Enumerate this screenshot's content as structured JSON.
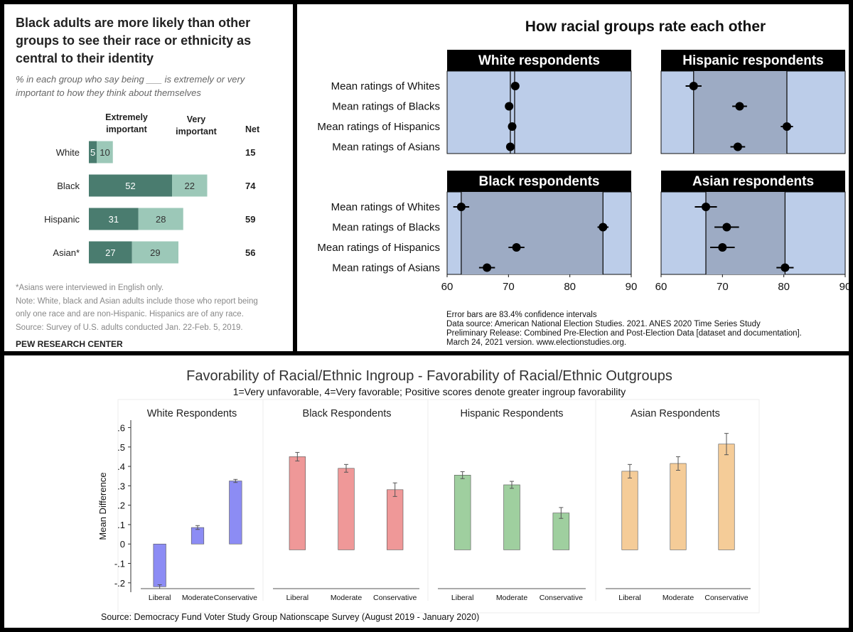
{
  "pew": {
    "title_lines": [
      "Black adults are more likely than other",
      "groups to see their race or ethnicity as",
      "central to their identity"
    ],
    "subtitle_lines": [
      "% in each group who say being ___ is extremely or very",
      "important to how they think about themselves"
    ],
    "col_headers": {
      "extremely": [
        "Extremely",
        "important"
      ],
      "very": [
        "Very",
        "important"
      ],
      "net": "Net"
    },
    "footnotes": [
      "*Asians were interviewed in English only.",
      "Note: White, black and Asian adults include those who report being",
      "only one race and are non-Hispanic. Hispanics are of any race.",
      "Source: Survey of U.S. adults conducted Jan. 22-Feb. 5, 2019."
    ],
    "brand": "PEW RESEARCH CENTER",
    "colors": {
      "extremely": "#4a7c6f",
      "very": "#9cc8b8"
    }
  },
  "anes": {
    "title": "How racial groups rate each other",
    "notes": [
      "Error bars are 83.4% confidence intervals",
      "Data source: American National Election Studies. 2021. ANES 2020 Time Series Study",
      "Preliminary Release: Combined Pre-Election and Post-Election Data [dataset and documentation].",
      "March 24, 2021 version. www.electionstudies.org."
    ],
    "colors": {
      "panel_bg": "#bccde9",
      "shade": "#9dabc4",
      "header_bg": "#000000"
    }
  },
  "dfvsg": {
    "title": "Favorability of Racial/Ethnic Ingroup - Favorability of Racial/Ethnic Outgroups",
    "subtitle": "1=Very unfavorable, 4=Very favorable; Positive scores denote greater ingroup favorability",
    "source": "Source: Democracy Fund Voter Study Group Nationscape Survey (August 2019 - January 2020)",
    "ylabel": "Mean Difference"
  },
  "chart_data": [
    {
      "type": "bar",
      "stacked": true,
      "orientation": "horizontal",
      "categories": [
        "White",
        "Black",
        "Hispanic",
        "Asian*"
      ],
      "series": [
        {
          "name": "Extremely important",
          "values": [
            5,
            52,
            31,
            27
          ]
        },
        {
          "name": "Very important",
          "values": [
            10,
            22,
            28,
            29
          ]
        }
      ],
      "net": [
        15,
        74,
        59,
        56
      ]
    },
    {
      "type": "scatter",
      "error_bars": true,
      "xlim": [
        60,
        90
      ],
      "xticks": [
        60,
        70,
        80,
        90
      ],
      "row_labels": [
        "Mean ratings of Whites",
        "Mean ratings of Blacks",
        "Mean ratings of Hispanics",
        "Mean ratings of Asians"
      ],
      "panels": [
        {
          "name": "White respondents",
          "shade": null,
          "lines": [
            70.3,
            71.0
          ],
          "points": [
            {
              "v": 71.1,
              "lo": 70.9,
              "hi": 71.3
            },
            {
              "v": 70.1,
              "lo": 69.9,
              "hi": 70.3
            },
            {
              "v": 70.6,
              "lo": 70.4,
              "hi": 70.8
            },
            {
              "v": 70.3,
              "lo": 70.1,
              "hi": 70.5
            }
          ]
        },
        {
          "name": "Hispanic respondents",
          "shade": [
            65.3,
            80.5
          ],
          "lines": [
            65.3,
            80.5
          ],
          "points": [
            {
              "v": 65.3,
              "lo": 64.0,
              "hi": 66.6
            },
            {
              "v": 72.8,
              "lo": 71.6,
              "hi": 74.0
            },
            {
              "v": 80.5,
              "lo": 79.5,
              "hi": 81.5
            },
            {
              "v": 72.5,
              "lo": 71.3,
              "hi": 73.7
            }
          ]
        },
        {
          "name": "Black respondents",
          "shade": [
            62.3,
            85.4
          ],
          "lines": [
            62.3,
            85.4
          ],
          "points": [
            {
              "v": 62.3,
              "lo": 61.0,
              "hi": 63.6
            },
            {
              "v": 85.4,
              "lo": 84.5,
              "hi": 86.3
            },
            {
              "v": 71.3,
              "lo": 70.0,
              "hi": 72.6
            },
            {
              "v": 66.5,
              "lo": 65.2,
              "hi": 67.8
            }
          ]
        },
        {
          "name": "Asian respondents",
          "shade": [
            67.3,
            80.2
          ],
          "lines": [
            67.3,
            80.2
          ],
          "points": [
            {
              "v": 67.3,
              "lo": 65.5,
              "hi": 69.1
            },
            {
              "v": 70.7,
              "lo": 68.7,
              "hi": 72.7
            },
            {
              "v": 70.0,
              "lo": 68.0,
              "hi": 72.0
            },
            {
              "v": 80.2,
              "lo": 78.8,
              "hi": 81.6
            }
          ]
        }
      ]
    },
    {
      "type": "bar",
      "error_bars": true,
      "ylim": [
        -0.23,
        0.62
      ],
      "yticks": [
        -0.2,
        -0.1,
        0,
        0.1,
        0.2,
        0.3,
        0.4,
        0.5,
        0.6
      ],
      "ytick_labels": [
        "-.2",
        "-.1",
        "0",
        ".1",
        ".2",
        ".3",
        ".4",
        ".5",
        ".6"
      ],
      "categories": [
        "Liberal",
        "Moderate",
        "Conservative"
      ],
      "series": [
        {
          "name": "White Respondents",
          "color": "#8c8cf4",
          "values": [
            -0.22,
            0.085,
            0.325
          ],
          "err": [
            0.01,
            0.01,
            0.008
          ]
        },
        {
          "name": "Black Respondents",
          "color": "#ef9898",
          "values": [
            0.45,
            0.39,
            0.28
          ],
          "err": [
            0.022,
            0.02,
            0.035
          ]
        },
        {
          "name": "Hispanic Respondents",
          "color": "#9fcf9f",
          "values": [
            0.355,
            0.305,
            0.16
          ],
          "err": [
            0.018,
            0.018,
            0.028
          ]
        },
        {
          "name": "Asian Respondents",
          "color": "#f5cc98",
          "values": [
            0.375,
            0.415,
            0.515
          ],
          "err": [
            0.035,
            0.035,
            0.055
          ]
        }
      ]
    }
  ]
}
